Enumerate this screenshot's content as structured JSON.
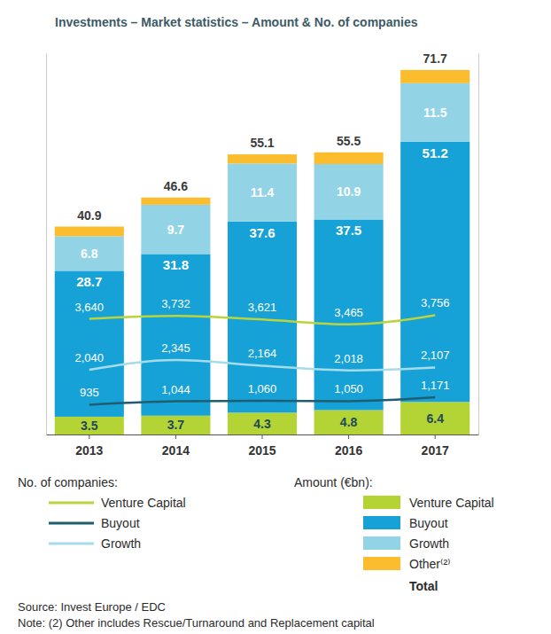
{
  "chart_data": {
    "type": "bar",
    "title": "Investments – Market statistics – Amount & No. of companies",
    "categories": [
      "2013",
      "2014",
      "2015",
      "2016",
      "2017"
    ],
    "stacked": true,
    "data_labels": true,
    "tick_labels": "x",
    "legend": "bottom",
    "ylim": [
      0,
      75
    ],
    "yticks": [],
    "y2lim": [
      0,
      12000
    ],
    "y2ticks": [],
    "series": [
      {
        "name": "Venture Capital",
        "type": "bar",
        "color": "#b4d334",
        "values": [
          3.5,
          3.7,
          4.3,
          4.8,
          6.4
        ]
      },
      {
        "name": "Buyout",
        "type": "bar",
        "color": "#16a2d7",
        "values": [
          28.7,
          31.8,
          37.6,
          37.5,
          51.2
        ]
      },
      {
        "name": "Growth",
        "type": "bar",
        "color": "#92d3e6",
        "values": [
          6.8,
          9.7,
          11.4,
          10.9,
          11.5
        ]
      },
      {
        "name": "Other⁽²⁾",
        "type": "bar",
        "color": "#fbbd2e",
        "data_labels": false,
        "values": [
          1.9,
          1.4,
          1.8,
          2.3,
          2.6
        ]
      },
      {
        "name": "Venture Capital",
        "type": "line",
        "axis": "y2",
        "color": "#b9d43c",
        "values": [
          3640,
          3732,
          3621,
          3465,
          3756
        ],
        "value_labels": [
          "3,640",
          "3,732",
          "3,621",
          "3,465",
          "3,756"
        ]
      },
      {
        "name": "Buyout",
        "type": "line",
        "axis": "y2",
        "color": "#1f5e70",
        "values": [
          935,
          1044,
          1060,
          1050,
          1171
        ],
        "value_labels": [
          "935",
          "1,044",
          "1,060",
          "1,050",
          "1,171"
        ]
      },
      {
        "name": "Growth",
        "type": "line",
        "axis": "y2",
        "color": "#a6dbe9",
        "values": [
          2040,
          2345,
          2164,
          2018,
          2107
        ],
        "value_labels": [
          "2,040",
          "2,345",
          "2,164",
          "2,018",
          "2,107"
        ]
      }
    ],
    "totals": {
      "name": "Total",
      "values": [
        40.9,
        46.6,
        55.1,
        55.5,
        71.7
      ]
    },
    "legend_titles": {
      "line": "No. of companies:",
      "bar": "Amount (€bn):"
    },
    "source": "Source: Invest Europe / EDC",
    "note": "Note: (2) Other includes Rescue/Turnaround and Replacement capital"
  }
}
